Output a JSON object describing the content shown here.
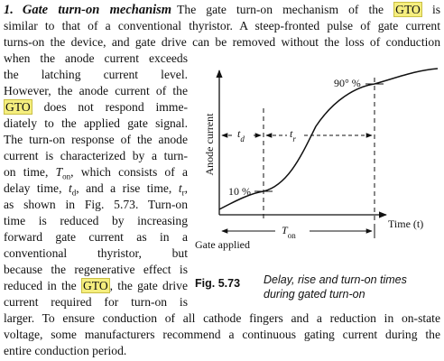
{
  "text": {
    "lines": [
      [
        "1.",
        "Gate turn-on mechanism",
        "The gate turn-on mechanism of the ",
        "GTO",
        " is"
      ],
      [
        "similar to that of a conventional thyristor. A steep-fronted pulse of gate current"
      ],
      [
        "turns-on the device, and gate drive can be removed without the loss of conduction"
      ],
      [
        "when the anode current exceeds"
      ],
      [
        "the latching current level."
      ],
      [
        "However, the anode current of the"
      ],
      [
        "GTO",
        " does not respond imme-"
      ],
      [
        "diately to the applied gate signal."
      ],
      [
        "The turn-on response of the anode"
      ],
      [
        "current is characterized by a turn-"
      ],
      [
        "on time, ",
        "T",
        "on",
        ", which consists of a"
      ],
      [
        "delay time, ",
        "t",
        "d",
        ", and a rise time, ",
        "t",
        "r",
        ","
      ],
      [
        "as shown in Fig. 5.73. Turn-on"
      ],
      [
        "time is reduced by increasing"
      ],
      [
        "forward gate current as in a"
      ],
      [
        "conventional thyristor, but"
      ],
      [
        "because the regenerative effect is"
      ],
      [
        "reduced in the ",
        "GTO",
        ", the gate drive"
      ],
      [
        "current required for turn-on is"
      ],
      [
        "larger. To ensure conduction of all cathode fingers and a reduction in on-state"
      ],
      [
        "voltage, some manufacturers recommend a continuous gating current during the"
      ],
      [
        "entire conduction period."
      ]
    ]
  },
  "figure": {
    "y_axis_label": "Anode current",
    "x_axis_label": "Time (t)",
    "label_90": "90° %",
    "label_10": "10 %",
    "td": [
      "t",
      "d"
    ],
    "tr": [
      "t",
      "r"
    ],
    "ton": [
      "T",
      "on"
    ],
    "gate_applied": "Gate applied",
    "caption_number": "Fig. 5.73",
    "caption_lines": [
      "Delay, rise and turn-on times",
      "during gated turn-on"
    ]
  }
}
